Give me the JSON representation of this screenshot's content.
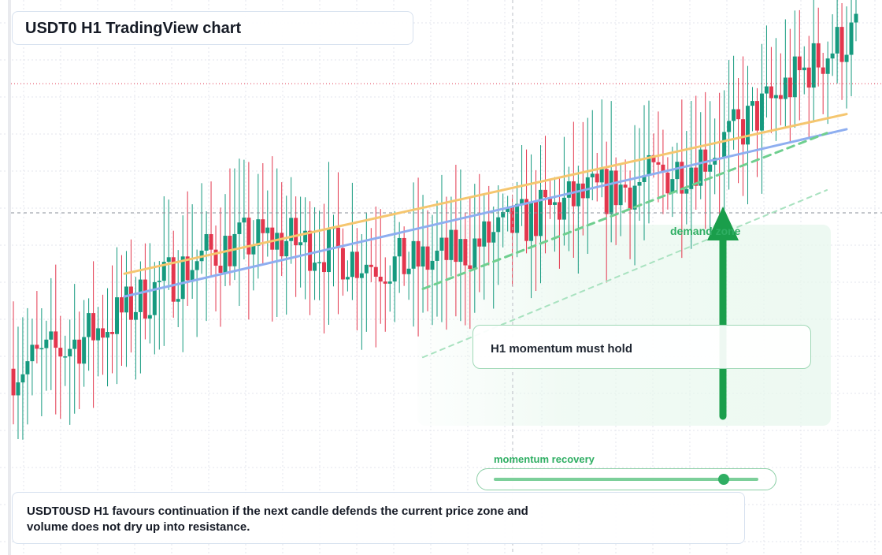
{
  "header": {
    "title": "USDT0 H1 TradingView chart"
  },
  "annotations": {
    "zone_label": "demand zone",
    "note": "H1 momentum must hold",
    "momentum_label": "momentum recovery",
    "momentum_level": 0.87
  },
  "summary": {
    "line1": "USDT0USD H1 favours continuation if the next candle defends the current price zone and",
    "line2": "volume does not dry up into resistance."
  },
  "colors": {
    "up": "#169a7f",
    "down": "#e3364d",
    "ma_fast": "#f5c66f",
    "ma_slow": "#8eaef0",
    "accent_green": "#1a9e4b",
    "grid": "#e3e6ec"
  },
  "chart_data": {
    "type": "candlestick",
    "title": "USDT0 H1 TradingView chart",
    "series": [
      {
        "type": "candles",
        "bars": 180,
        "trend": "rising",
        "open_start": 15,
        "close_end": 90,
        "price_scale": "0 to 100 (relative, no axis labels shown)"
      },
      {
        "type": "line",
        "label": "moving average (orange)",
        "values": [
          40,
          82
        ]
      },
      {
        "type": "line",
        "label": "moving average (blue)",
        "values": [
          34,
          78
        ]
      },
      {
        "type": "line",
        "label": "dashed trend (green)",
        "values": [
          36,
          77
        ]
      },
      {
        "type": "line",
        "label": "dashed trend (light green)",
        "values": [
          18,
          62
        ]
      }
    ],
    "reference_lines": [
      {
        "style": "dotted",
        "color": "#e3364d",
        "value": 90
      },
      {
        "style": "dashed",
        "color": "#888888",
        "value": 56
      }
    ],
    "annotation_arrow": {
      "direction": "up",
      "color": "#1a9e4b"
    },
    "grid": true,
    "legend": "none"
  }
}
